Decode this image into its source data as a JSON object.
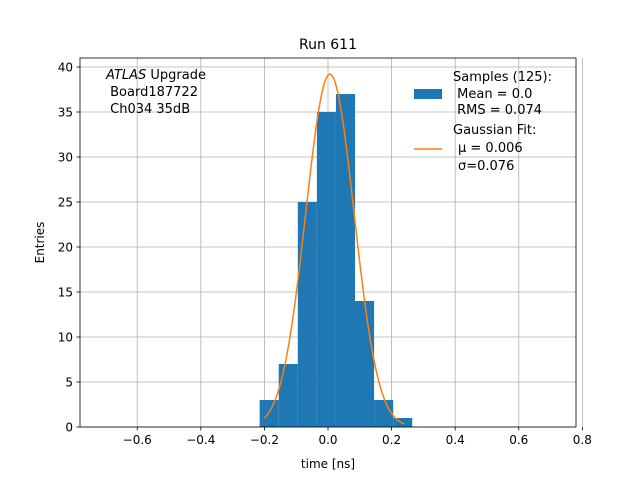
{
  "chart_data": {
    "type": "bar",
    "title": "Run 611",
    "xlabel": "time [ns]",
    "ylabel": "Entries",
    "xlim": [
      -0.78,
      0.78
    ],
    "ylim": [
      0,
      41
    ],
    "grid": true,
    "x_ticks": [
      -0.6,
      -0.4,
      -0.2,
      0.0,
      0.2,
      0.4,
      0.6,
      0.8
    ],
    "x_tick_labels": [
      "−0.6",
      "−0.4",
      "−0.2",
      "0.0",
      "0.2",
      "0.4",
      "0.6",
      "0.8"
    ],
    "y_ticks": [
      0,
      5,
      10,
      15,
      20,
      25,
      30,
      35,
      40
    ],
    "y_tick_labels": [
      "0",
      "5",
      "10",
      "15",
      "20",
      "25",
      "30",
      "35",
      "40"
    ],
    "histogram": {
      "bin_edges": [
        -0.215,
        -0.155,
        -0.095,
        -0.035,
        0.025,
        0.085,
        0.145,
        0.205,
        0.265
      ],
      "sub_bins": [
        {
          "x0": -0.215,
          "x1": -0.155,
          "count": 3
        },
        {
          "x0": -0.155,
          "x1": -0.095,
          "count": 7
        },
        {
          "x0": -0.095,
          "x1": -0.035,
          "count": 25
        },
        {
          "x0": -0.035,
          "x1": 0.025,
          "count": 35
        },
        {
          "x0": 0.025,
          "x1": 0.085,
          "count": 37
        },
        {
          "x0": 0.085,
          "x1": 0.145,
          "count": 14
        },
        {
          "x0": 0.145,
          "x1": 0.205,
          "count": 3
        },
        {
          "x0": 0.205,
          "x1": 0.265,
          "count": 1
        }
      ],
      "color": "#1f77b4"
    },
    "fit": {
      "type": "gaussian",
      "amplitude": 39.2,
      "mu": 0.006,
      "sigma": 0.076,
      "x_range": [
        -0.2,
        0.24
      ],
      "color": "#ff7f0e"
    },
    "legend": {
      "placement": "top-right",
      "entries": [
        {
          "swatch": "patch",
          "color": "#1f77b4",
          "lines": [
            "Samples (125):",
            " Mean = 0.0",
            " RMS = 0.074"
          ]
        },
        {
          "swatch": "line",
          "color": "#ff7f0e",
          "lines": [
            "Gaussian Fit:",
            "μ = 0.006",
            "σ=0.076"
          ]
        }
      ]
    },
    "annotation": {
      "italic": "ATLAS",
      "rest": " Upgrade",
      "line2": " Board187722",
      "line3": " Ch034 35dB"
    }
  }
}
